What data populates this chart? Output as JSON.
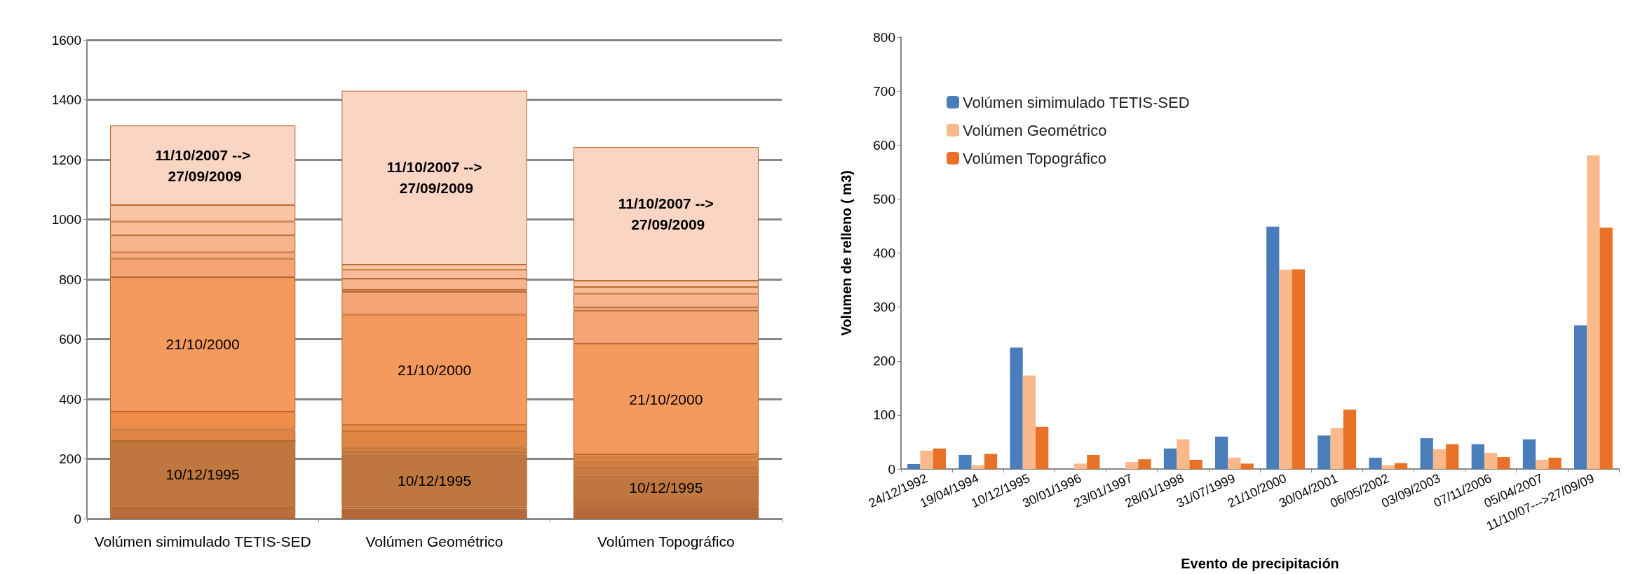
{
  "chart_data": [
    {
      "type": "bar",
      "stacked": true,
      "grid": "y",
      "legend": false,
      "categories": [
        "Volúmen simimulado TETIS-SED",
        "Volúmen Geométrico",
        "Volúmen Topográfico"
      ],
      "ylim": [
        0,
        1600
      ],
      "yticks": [
        0,
        200,
        400,
        600,
        800,
        1000,
        1200,
        1400,
        1600
      ],
      "series": [
        {
          "color": "#b5693a",
          "values": [
            9,
            34,
            38
          ]
        },
        {
          "color": "#bb6f3e",
          "values": [
            26,
            7,
            28
          ]
        },
        {
          "name": "10/12/1995",
          "color": "#c0773f",
          "values": [
            225,
            173,
            78
          ]
        },
        {
          "color": "#c97b41",
          "values": [
            0,
            10,
            26
          ]
        },
        {
          "color": "#d48042",
          "values": [
            0,
            13,
            18
          ]
        },
        {
          "color": "#e08644",
          "values": [
            38,
            55,
            17
          ]
        },
        {
          "color": "#f08e49",
          "values": [
            60,
            21,
            10
          ]
        },
        {
          "name": "21/10/2000",
          "color": "#f59a5f",
          "values": [
            449,
            369,
            370
          ]
        },
        {
          "color": "#f5a475",
          "values": [
            62,
            76,
            110
          ]
        },
        {
          "color": "#f6ab80",
          "values": [
            21,
            7,
            11
          ]
        },
        {
          "color": "#f7b38b",
          "values": [
            57,
            37,
            46
          ]
        },
        {
          "color": "#f8bc98",
          "values": [
            46,
            30,
            22
          ]
        },
        {
          "color": "#f9c5a5",
          "values": [
            55,
            17,
            21
          ]
        },
        {
          "name": "11/10/2007 --> 27/09/2009",
          "color": "#fad5c4",
          "values": [
            266,
            581,
            447
          ]
        }
      ]
    },
    {
      "type": "bar",
      "grid": false,
      "legend": "top left",
      "xlabel": "Evento de precipitación",
      "ylabel": "Volumen de relleno ( m3)",
      "categories": [
        "24/12/1992",
        "19/04/1994",
        "10/12/1995",
        "30/01/1996",
        "23/01/1997",
        "28/01/1998",
        "31/07/1999",
        "21/10/2000",
        "30/04/2001",
        "06/05/2002",
        "03/09/2003",
        "07/11/2006",
        "05/04/2007",
        "11/10/07--->27/09/09"
      ],
      "ylim": [
        0,
        800
      ],
      "yticks": [
        0,
        100,
        200,
        300,
        400,
        500,
        600,
        700,
        800
      ],
      "series": [
        {
          "name": "Volúmen simimulado TETIS-SED",
          "color": "#4a7ebb",
          "values": [
            9,
            26,
            225,
            0,
            0,
            38,
            60,
            449,
            62,
            21,
            57,
            46,
            55,
            266
          ]
        },
        {
          "name": "Volúmen Geométrico",
          "color": "#f9b98a",
          "values": [
            34,
            7,
            173,
            10,
            13,
            55,
            21,
            369,
            76,
            7,
            37,
            30,
            17,
            581
          ]
        },
        {
          "name": "Volúmen Topográfico",
          "color": "#e97127",
          "values": [
            38,
            28,
            78,
            26,
            18,
            17,
            10,
            370,
            110,
            11,
            46,
            22,
            21,
            447
          ]
        }
      ]
    }
  ]
}
